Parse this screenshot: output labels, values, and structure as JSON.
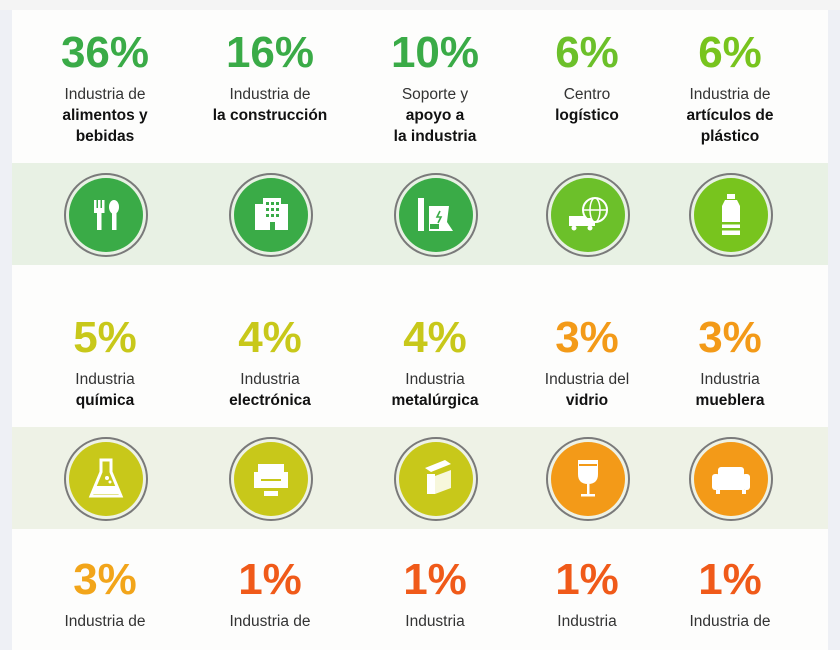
{
  "rows": [
    {
      "items": [
        {
          "pct": "36%",
          "line1": "Industria de",
          "bold": [
            "alimentos y",
            "bebidas"
          ],
          "color": "#3aab47",
          "icon": "fork-spoon-icon"
        },
        {
          "pct": "16%",
          "line1": "Industria de",
          "bold": [
            "la construcción"
          ],
          "color": "#3aab47",
          "icon": "buildings-icon"
        },
        {
          "pct": "10%",
          "line1": "Soporte y",
          "bold": [
            "apoyo a",
            "la industria"
          ],
          "color": "#3aab47",
          "icon": "power-plant-icon"
        },
        {
          "pct": "6%",
          "line1": "Centro",
          "bold": [
            "logístico"
          ],
          "color": "#6cc02a",
          "icon": "truck-globe-icon"
        },
        {
          "pct": "6%",
          "line1": "Industria de",
          "bold": [
            "artículos de",
            "plástico"
          ],
          "color": "#78c41e",
          "icon": "bottle-icon"
        }
      ]
    },
    {
      "items": [
        {
          "pct": "5%",
          "line1": "Industria",
          "bold": [
            "química"
          ],
          "color": "#c8c81a",
          "icon": "flask-icon"
        },
        {
          "pct": "4%",
          "line1": "Industria",
          "bold": [
            "electrónica"
          ],
          "color": "#c8c81a",
          "icon": "electronics-icon"
        },
        {
          "pct": "4%",
          "line1": "Industria",
          "bold": [
            "metalúrgica"
          ],
          "color": "#c8c81a",
          "icon": "steel-beam-icon"
        },
        {
          "pct": "3%",
          "line1": "Industria del",
          "bold": [
            "vidrio"
          ],
          "color": "#f39a18",
          "icon": "wine-glass-icon"
        },
        {
          "pct": "3%",
          "line1": "Industria",
          "bold": [
            "mueblera"
          ],
          "color": "#f39a18",
          "icon": "sofa-icon"
        }
      ]
    },
    {
      "items": [
        {
          "pct": "3%",
          "line1": "Industria de",
          "bold": [],
          "color": "#f2a51a"
        },
        {
          "pct": "1%",
          "line1": "Industria de",
          "bold": [],
          "color": "#f05a19"
        },
        {
          "pct": "1%",
          "line1": "Industria",
          "bold": [],
          "color": "#f05a19"
        },
        {
          "pct": "1%",
          "line1": "Industria",
          "bold": [],
          "color": "#f05a19"
        },
        {
          "pct": "1%",
          "line1": "Industria de",
          "bold": [],
          "color": "#f05a19"
        }
      ]
    }
  ]
}
